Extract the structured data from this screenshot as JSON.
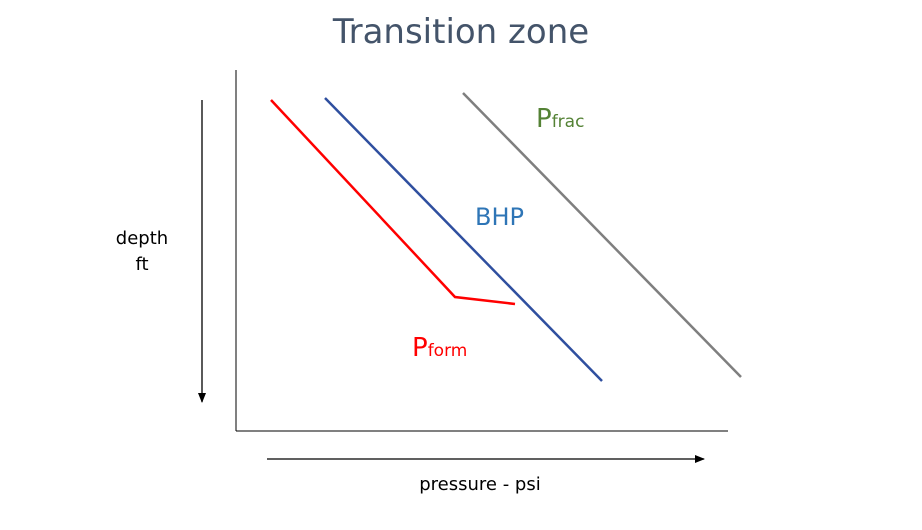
{
  "title": "Transition zone",
  "axis": {
    "y_label_line1": "depth",
    "y_label_line2": "ft",
    "x_label": "pressure - psi"
  },
  "series": {
    "pfrac": {
      "main": "P",
      "sub": "frac",
      "color": "#548235",
      "line_color": "#7f7f7f"
    },
    "bhp": {
      "label": "BHP",
      "color": "#2e75b6",
      "line_color": "#2f4f9f"
    },
    "pform": {
      "main": "P",
      "sub": "form",
      "color": "#ff0000",
      "line_color": "#ff0000"
    }
  }
}
